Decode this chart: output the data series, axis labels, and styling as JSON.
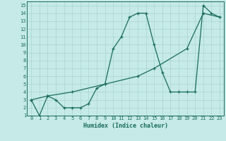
{
  "xlabel": "Humidex (Indice chaleur)",
  "bg_color": "#c5eae7",
  "line_color": "#1a6b5e",
  "xlim": [
    -0.5,
    23.5
  ],
  "ylim": [
    1,
    15.5
  ],
  "xticks": [
    0,
    1,
    2,
    3,
    4,
    5,
    6,
    7,
    8,
    9,
    10,
    11,
    12,
    13,
    14,
    15,
    16,
    17,
    18,
    19,
    20,
    21,
    22,
    23
  ],
  "yticks": [
    1,
    2,
    3,
    4,
    5,
    6,
    7,
    8,
    9,
    10,
    11,
    12,
    13,
    14,
    15
  ],
  "line1_x": [
    0,
    1,
    2,
    3,
    4,
    5,
    6,
    7,
    8,
    9,
    10,
    11,
    12,
    13,
    14,
    15,
    16,
    17,
    18,
    19,
    20,
    21,
    22,
    23
  ],
  "line1_y": [
    3,
    1,
    3.5,
    3,
    2,
    2,
    2,
    2.5,
    4.5,
    5,
    9.5,
    11,
    13.5,
    14,
    14,
    10,
    6.5,
    4,
    4,
    4,
    4,
    15,
    14,
    13.5
  ],
  "line2_x": [
    0,
    2,
    5,
    9,
    13,
    15,
    19,
    21,
    23
  ],
  "line2_y": [
    3,
    3.5,
    4,
    5,
    6,
    7,
    9.5,
    14,
    13.5
  ]
}
